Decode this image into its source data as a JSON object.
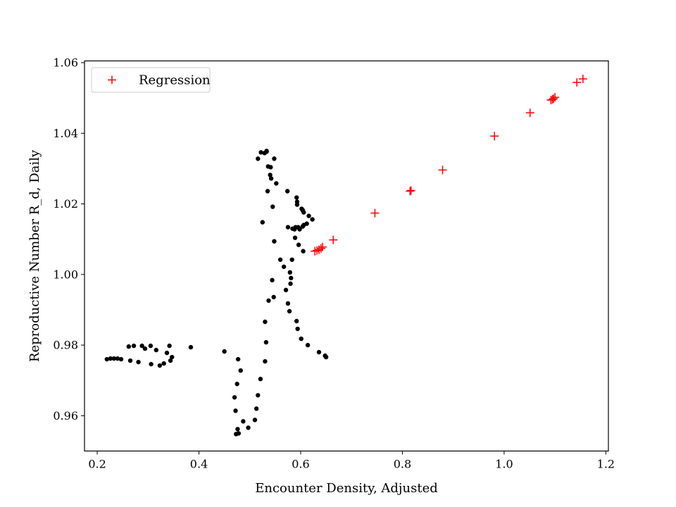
{
  "chart_data": {
    "type": "scatter",
    "title": "",
    "xlabel": "Encounter Density, Adjusted",
    "ylabel": "Reproductive Number R_d, Daily",
    "xlim": [
      0.175,
      1.205
    ],
    "ylim": [
      0.95,
      1.0605
    ],
    "xticks": [
      0.2,
      0.4,
      0.6,
      0.8,
      1.0,
      1.2
    ],
    "xtick_labels": [
      "0.2",
      "0.4",
      "0.6",
      "0.8",
      "1.0",
      "1.2"
    ],
    "yticks": [
      0.96,
      0.98,
      1.0,
      1.02,
      1.04,
      1.06
    ],
    "ytick_labels": [
      "0.96",
      "0.98",
      "1.00",
      "1.02",
      "1.04",
      "1.06"
    ],
    "grid": false,
    "legend_position": "top-left",
    "series": [
      {
        "marker": "circle",
        "color": "#000000",
        "points": [
          [
            0.219,
            0.976
          ],
          [
            0.226,
            0.9762
          ],
          [
            0.233,
            0.9762
          ],
          [
            0.24,
            0.9762
          ],
          [
            0.247,
            0.976
          ],
          [
            0.262,
            0.9796
          ],
          [
            0.265,
            0.9756
          ],
          [
            0.272,
            0.9798
          ],
          [
            0.281,
            0.9752
          ],
          [
            0.288,
            0.9798
          ],
          [
            0.294,
            0.979
          ],
          [
            0.305,
            0.9798
          ],
          [
            0.306,
            0.9746
          ],
          [
            0.316,
            0.9786
          ],
          [
            0.323,
            0.9742
          ],
          [
            0.331,
            0.9748
          ],
          [
            0.337,
            0.9778
          ],
          [
            0.342,
            0.9798
          ],
          [
            0.344,
            0.9756
          ],
          [
            0.347,
            0.9766
          ],
          [
            0.384,
            0.9794
          ],
          [
            0.45,
            0.9782
          ],
          [
            0.47,
            0.9652
          ],
          [
            0.472,
            0.9614
          ],
          [
            0.473,
            0.9548
          ],
          [
            0.475,
            0.969
          ],
          [
            0.476,
            0.9562
          ],
          [
            0.477,
            0.976
          ],
          [
            0.478,
            0.955
          ],
          [
            0.482,
            0.9728
          ],
          [
            0.487,
            0.9584
          ],
          [
            0.497,
            0.9566
          ],
          [
            0.51,
            0.9588
          ],
          [
            0.513,
            0.962
          ],
          [
            0.516,
            0.9658
          ],
          [
            0.516,
            1.0328
          ],
          [
            0.521,
            0.9704
          ],
          [
            0.522,
            1.0346
          ],
          [
            0.525,
            1.0148
          ],
          [
            0.529,
            1.0344
          ],
          [
            0.53,
            0.9754
          ],
          [
            0.53,
            0.9866
          ],
          [
            0.532,
            0.9808
          ],
          [
            0.533,
            1.035
          ],
          [
            0.533,
            1.0348
          ],
          [
            0.535,
            1.0236
          ],
          [
            0.536,
            1.0306
          ],
          [
            0.537,
            0.9926
          ],
          [
            0.54,
            1.0282
          ],
          [
            0.541,
            1.0304
          ],
          [
            0.542,
            1.0272
          ],
          [
            0.544,
            0.9984
          ],
          [
            0.545,
            1.0192
          ],
          [
            0.547,
            0.9936
          ],
          [
            0.548,
            1.0094
          ],
          [
            0.548,
            1.0328
          ],
          [
            0.552,
            1.0258
          ],
          [
            0.56,
            1.0042
          ],
          [
            0.567,
            1.0022
          ],
          [
            0.571,
            0.9956
          ],
          [
            0.574,
            1.0236
          ],
          [
            0.575,
            1.0134
          ],
          [
            0.575,
            0.9918
          ],
          [
            0.578,
            0.9896
          ],
          [
            0.579,
            1.0006
          ],
          [
            0.58,
            0.9974
          ],
          [
            0.581,
            0.999
          ],
          [
            0.583,
            1.0042
          ],
          [
            0.584,
            1.013
          ],
          [
            0.588,
            1.0128
          ],
          [
            0.589,
            1.0104
          ],
          [
            0.59,
            1.0134
          ],
          [
            0.592,
            0.9868
          ],
          [
            0.592,
            1.0218
          ],
          [
            0.593,
            1.0206
          ],
          [
            0.593,
            1.0198
          ],
          [
            0.594,
            0.9846
          ],
          [
            0.595,
            1.0134
          ],
          [
            0.596,
            1.0084
          ],
          [
            0.598,
            1.0128
          ],
          [
            0.601,
            0.9818
          ],
          [
            0.602,
            1.0186
          ],
          [
            0.604,
            1.0182
          ],
          [
            0.604,
            1.0136
          ],
          [
            0.605,
            1.0066
          ],
          [
            0.606,
            1.0176
          ],
          [
            0.606,
            1.014
          ],
          [
            0.612,
            1.0144
          ],
          [
            0.614,
            0.98
          ],
          [
            0.616,
            1.0166
          ],
          [
            0.623,
            1.0156
          ],
          [
            0.636,
            0.978
          ],
          [
            0.648,
            0.977
          ],
          [
            0.65,
            0.9766
          ]
        ]
      },
      {
        "name": "Regression",
        "marker": "plus",
        "color": "#ff0000",
        "points": [
          [
            0.628,
            1.0066
          ],
          [
            0.632,
            1.0068
          ],
          [
            0.636,
            1.007
          ],
          [
            0.64,
            1.0074
          ],
          [
            0.643,
            1.0078
          ],
          [
            0.664,
            1.0098
          ],
          [
            0.746,
            1.0174
          ],
          [
            0.815,
            1.0236
          ],
          [
            0.817,
            1.0238
          ],
          [
            0.879,
            1.0296
          ],
          [
            0.981,
            1.0392
          ],
          [
            1.051,
            1.0458
          ],
          [
            1.092,
            1.0494
          ],
          [
            1.095,
            1.0496
          ],
          [
            1.097,
            1.0498
          ],
          [
            1.1,
            1.0502
          ],
          [
            1.143,
            1.0544
          ],
          [
            1.155,
            1.0554
          ]
        ]
      }
    ]
  }
}
